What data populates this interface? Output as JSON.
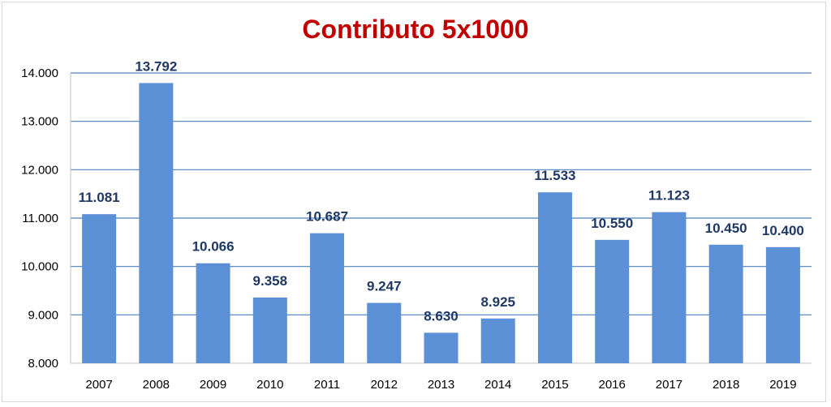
{
  "chart_data": {
    "type": "bar",
    "title": "Contributo 5x1000",
    "xlabel": "",
    "ylabel": "",
    "categories": [
      "2007",
      "2008",
      "2009",
      "2010",
      "2011",
      "2012",
      "2013",
      "2014",
      "2015",
      "2016",
      "2017",
      "2018",
      "2019"
    ],
    "values": [
      11081,
      13792,
      10066,
      9358,
      10687,
      9247,
      8630,
      8925,
      11533,
      10550,
      11123,
      10450,
      10400
    ],
    "value_labels": [
      "11.081",
      "13.792",
      "10.066",
      "9.358",
      "10.687",
      "9.247",
      "8.630",
      "8.925",
      "11.533",
      "10.550",
      "11.123",
      "10.450",
      "10.400"
    ],
    "ylim": [
      8000,
      14000
    ],
    "yticks": [
      8000,
      9000,
      10000,
      11000,
      12000,
      13000,
      14000
    ],
    "ytick_labels": [
      "8.000",
      "9.000",
      "10.000",
      "11.000",
      "12.000",
      "13.000",
      "14.000"
    ],
    "grid": true,
    "colors": {
      "bar": "#5b8fd6",
      "grid": "#4f81bd",
      "title": "#c00000",
      "data_label": "#1f3864"
    }
  }
}
